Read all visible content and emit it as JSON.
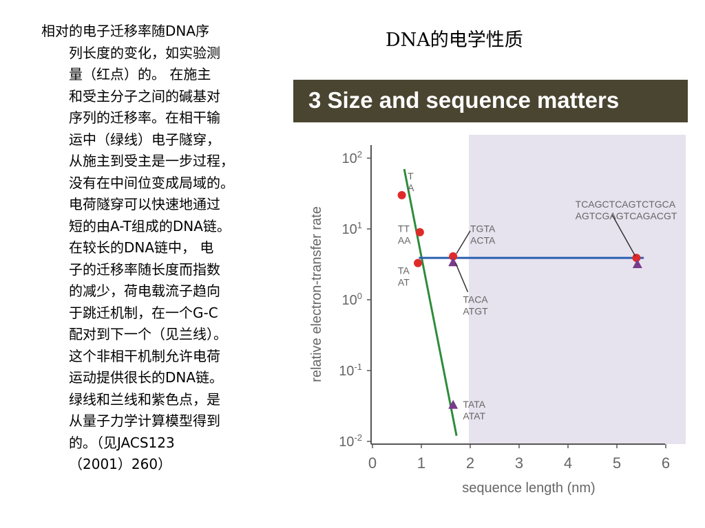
{
  "slide_title": "DNA的电学性质",
  "body_lines": [
    "相对的电子迁移率随DNA序",
    "列长度的变化，如实验测",
    "量（红点）的。 在施主",
    "和受主分子之间的碱基对",
    "序列的迁移率。在相干输",
    "运中（绿线）电子隧穿，",
    "从施主到受主是一步过程，",
    "没有在中间位变成局域的。",
    "电荷隧穿可以快速地通过",
    "短的由A-T组成的DNA链。",
    "在较长的DNA链中， 电",
    "子的迁移率随长度而指数",
    "的减少，荷电载流子趋向",
    "于跳迁机制，在一个G-C",
    "配对到下一个（见兰线）。",
    "这个非相干机制允许电荷",
    "运动提供很长的DNA链。",
    "绿线和兰线和紫色点，是",
    "从量子力学计算模型得到",
    "的。（见JACS123",
    "（2001）260）"
  ],
  "figure": {
    "banner_title": "3 Size and sequence matters",
    "colors": {
      "banner": "#4a4531",
      "panel": "#e6e3ee",
      "green": "#2e8b3a",
      "blue": "#2b5fb0",
      "red": "#e02a2a",
      "purple": "#7a3a8c"
    }
  },
  "chart_data": {
    "type": "scatter",
    "xlabel": "sequence length (nm)",
    "ylabel": "relative electron-transfer rate",
    "xlim": [
      0,
      6
    ],
    "ylim": [
      0.01,
      100
    ],
    "yscale": "log",
    "xticks": [
      "0",
      "1",
      "2",
      "3",
      "4",
      "5",
      "6"
    ],
    "yticks": [
      "10^2",
      "10^1",
      "10^0",
      "10^-1",
      "10^-2"
    ],
    "lines": [
      {
        "color": "green",
        "x": [
          0.65,
          1.72
        ],
        "y": [
          70,
          0.012
        ]
      },
      {
        "color": "blue",
        "x": [
          0.95,
          5.55
        ],
        "y": [
          3.9,
          3.9
        ]
      }
    ],
    "red_points": [
      {
        "x": 0.6,
        "y": 30
      },
      {
        "x": 0.97,
        "y": 9
      },
      {
        "x": 0.93,
        "y": 3.3
      },
      {
        "x": 1.65,
        "y": 4.1
      },
      {
        "x": 5.4,
        "y": 3.9
      }
    ],
    "purple_points": [
      {
        "x": 1.65,
        "y": 3.4
      },
      {
        "x": 1.65,
        "y": 0.033
      },
      {
        "x": 5.42,
        "y": 3.2
      }
    ],
    "annotations": [
      {
        "lines": [
          "T",
          "A"
        ],
        "x": 0.72,
        "y": 50
      },
      {
        "lines": [
          "TT",
          "AA"
        ],
        "x": 0.52,
        "y": 9
      },
      {
        "lines": [
          "TA",
          "AT"
        ],
        "x": 0.52,
        "y": 2.3
      },
      {
        "lines": [
          "TGTA",
          "ACTA"
        ],
        "x": 2.0,
        "y": 9
      },
      {
        "lines": [
          "TACA",
          "ATGT"
        ],
        "x": 1.85,
        "y": 0.9
      },
      {
        "lines": [
          "TATA",
          "ATAT"
        ],
        "x": 1.85,
        "y": 0.03
      },
      {
        "lines": [
          "TCAGCTCAGTCTGCA",
          "AGTCGAGTCAGACGT"
        ],
        "x": 4.15,
        "y": 20
      }
    ]
  }
}
